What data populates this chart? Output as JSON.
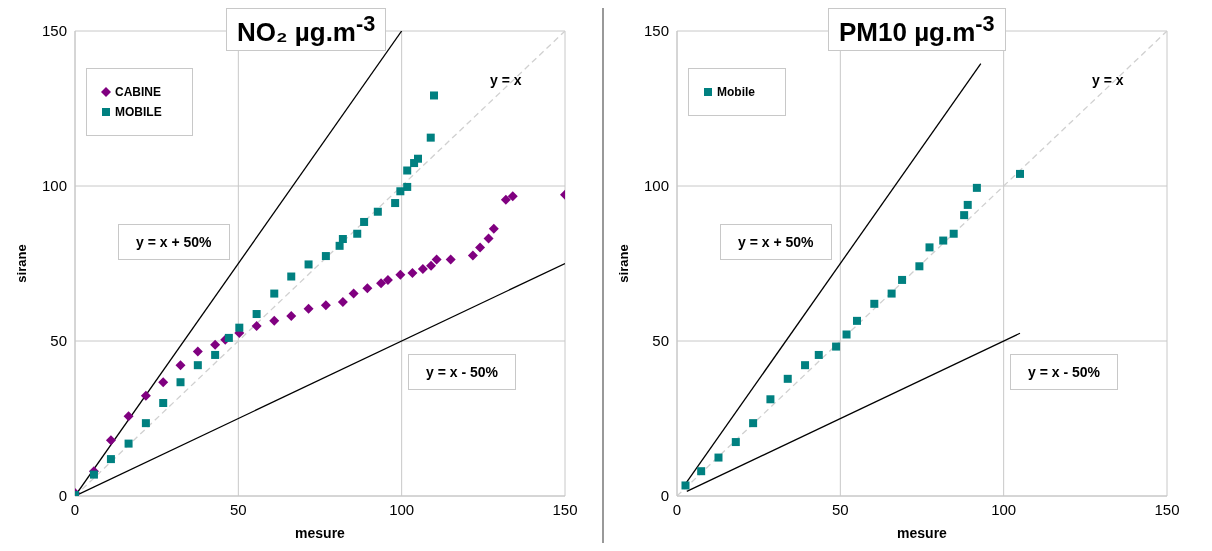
{
  "chart_data": [
    {
      "type": "scatter",
      "title": "NO₂ µg.m$^{-3}$",
      "xlabel": "mesure",
      "ylabel": "sirane",
      "xlim": [
        0,
        150
      ],
      "ylim": [
        0,
        150
      ],
      "xticks": [
        0,
        50,
        100,
        150
      ],
      "yticks": [
        0,
        50,
        100,
        150
      ],
      "grid": true,
      "legend": "top left",
      "annotations": [
        "y = x + 50%",
        "y = x - 50%",
        "y = x"
      ],
      "series": [
        {
          "type": "line",
          "color": "#d0d0d0",
          "line_style": "dashed",
          "marker": "none",
          "x": [
            0,
            150
          ],
          "values": [
            0,
            150
          ]
        },
        {
          "type": "line",
          "color": "#000000",
          "line_style": "solid",
          "marker": "none",
          "x": [
            0,
            100
          ],
          "values": [
            0,
            150
          ]
        },
        {
          "type": "line",
          "color": "#000000",
          "line_style": "solid",
          "marker": "none",
          "x": [
            0,
            150
          ],
          "values": [
            0,
            75
          ]
        },
        {
          "name": "CABINE",
          "color": "#800080",
          "marker": "diamond",
          "x": [
            0,
            5.8,
            11,
            16.4,
            21.7,
            27,
            32.3,
            37.6,
            42.9,
            46,
            50.3,
            55.6,
            61,
            66.2,
            71.5,
            76.8,
            82,
            85.3,
            89.5,
            93.7,
            95.8,
            99.6,
            103.3,
            106.5,
            109,
            110.7,
            115,
            121.8,
            124,
            126.6,
            128.2,
            131.9,
            134,
            150
          ],
          "values": [
            1,
            8,
            18,
            25.7,
            32.3,
            36.7,
            42.2,
            46.6,
            48.8,
            50.4,
            52.6,
            54.8,
            56.5,
            58.1,
            60.4,
            61.5,
            62.6,
            65.3,
            67,
            68.6,
            69.7,
            71.4,
            71.9,
            73.2,
            74.3,
            76.3,
            76.3,
            77.6,
            80.2,
            83.1,
            86.2,
            95.6,
            96.7,
            97.2
          ]
        },
        {
          "name": "MOBILE",
          "color": "#008080",
          "marker": "square",
          "x": [
            0,
            5.8,
            11,
            16.4,
            21.7,
            27,
            32.3,
            37.6,
            42.9,
            47.1,
            50.3,
            55.6,
            61,
            66.2,
            71.5,
            76.8,
            81,
            82,
            86.4,
            88.5,
            92.7,
            98,
            99.6,
            101.7,
            101.7,
            103.8,
            105,
            108.9,
            109.9
          ],
          "values": [
            0.3,
            6.9,
            11.9,
            16.9,
            23.5,
            30,
            36.7,
            42.2,
            45.5,
            51,
            54.3,
            58.7,
            65.3,
            70.8,
            74.7,
            77.4,
            80.7,
            82.9,
            84.6,
            88.4,
            91.7,
            94.5,
            98.3,
            99.7,
            105,
            107.4,
            108.8,
            115.6,
            129.2
          ]
        }
      ]
    },
    {
      "type": "scatter",
      "title": "PM10 µg.m$^{-3}$",
      "xlabel": "mesure",
      "ylabel": "sirane",
      "xlim": [
        0,
        150
      ],
      "ylim": [
        0,
        150
      ],
      "xticks": [
        0,
        50,
        100,
        150
      ],
      "yticks": [
        0,
        50,
        100,
        150
      ],
      "grid": true,
      "legend": "top left",
      "annotations": [
        "y = x + 50%",
        "y = x - 50%",
        "y = x"
      ],
      "series": [
        {
          "type": "line",
          "color": "#d0d0d0",
          "line_style": "dashed",
          "marker": "none",
          "x": [
            0,
            150
          ],
          "values": [
            0,
            150
          ]
        },
        {
          "type": "line",
          "color": "#000000",
          "line_style": "solid",
          "marker": "none",
          "x": [
            2,
            93
          ],
          "values": [
            3,
            139.5
          ]
        },
        {
          "type": "line",
          "color": "#000000",
          "line_style": "solid",
          "marker": "none",
          "x": [
            3,
            105
          ],
          "values": [
            1.5,
            52.5
          ]
        },
        {
          "name": "Mobile",
          "color": "#008080",
          "marker": "square",
          "x": [
            2.6,
            7.4,
            12.7,
            18,
            23.3,
            28.6,
            33.9,
            39.2,
            43.4,
            48.7,
            51.9,
            55.1,
            60.4,
            65.7,
            68.9,
            74.2,
            77.3,
            81.5,
            84.7,
            87.9,
            89,
            91.8,
            105
          ],
          "values": [
            3.4,
            8,
            12.4,
            17.4,
            23.5,
            31.2,
            37.8,
            42.2,
            45.5,
            48.2,
            52.1,
            56.5,
            62,
            65.3,
            69.7,
            74.1,
            80.2,
            82.4,
            84.6,
            90.6,
            93.9,
            99.4,
            103.9
          ]
        }
      ]
    }
  ]
}
